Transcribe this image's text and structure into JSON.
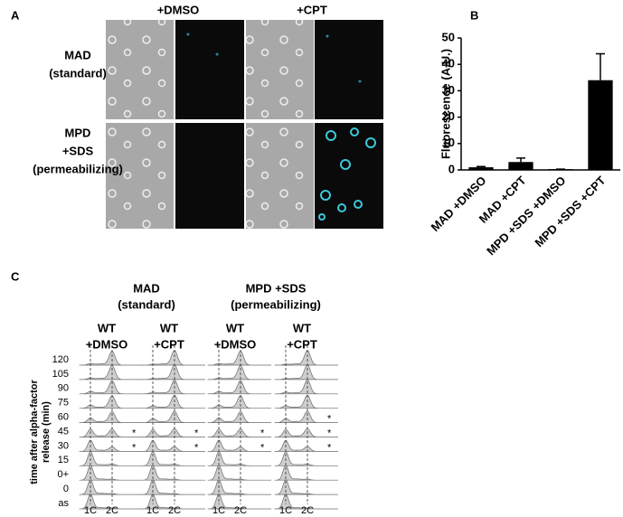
{
  "panel_a": {
    "label": "A",
    "columns": [
      "+DMSO",
      "+CPT"
    ],
    "rows": [
      [
        "MAD",
        "(standard)"
      ],
      [
        "MPD",
        "+SDS",
        "(permeabilizing)"
      ]
    ]
  },
  "chart_data": {
    "type": "bar",
    "panel_label": "B",
    "y_label": "Fluorescence (A.U.)",
    "categories": [
      "MAD +DMSO",
      "MAD +CPT",
      "MPD +SDS +DMSO",
      "MPD +SDS +CPT"
    ],
    "values": [
      1,
      3,
      0.3,
      34
    ],
    "errors": [
      0.3,
      1.5,
      0,
      10
    ],
    "color": "#000000",
    "ylim": [
      0,
      50
    ],
    "yticks": [
      0,
      10,
      20,
      30,
      40,
      50
    ]
  },
  "panel_c": {
    "label": "C",
    "y_label": [
      "time after alpha-factor",
      "release (min)"
    ],
    "row_labels": [
      "120",
      "105",
      "90",
      "75",
      "60",
      "45",
      "30",
      "15",
      "0+",
      "0",
      "as"
    ],
    "x_labels": [
      "1C",
      "2C"
    ],
    "groups": [
      {
        "title": [
          "MAD",
          "(standard)"
        ],
        "columns": [
          {
            "title": [
              "WT",
              "+DMSO"
            ],
            "marks": [
              null,
              null,
              null,
              null,
              null,
              "*",
              "*",
              null,
              null,
              null,
              null
            ]
          },
          {
            "title": [
              "WT",
              "+CPT"
            ],
            "marks": [
              null,
              null,
              null,
              null,
              null,
              "*",
              "*",
              null,
              null,
              null,
              null
            ]
          }
        ]
      },
      {
        "title": [
          "MPD +SDS",
          "(permeabilizing)"
        ],
        "columns": [
          {
            "title": [
              "WT",
              "+DMSO"
            ],
            "marks": [
              null,
              null,
              null,
              null,
              null,
              "*",
              "*",
              null,
              null,
              null,
              null
            ]
          },
          {
            "title": [
              "WT",
              "+CPT"
            ],
            "marks": [
              null,
              null,
              null,
              null,
              "*",
              "*",
              "*",
              null,
              null,
              null,
              null
            ]
          }
        ]
      }
    ]
  }
}
